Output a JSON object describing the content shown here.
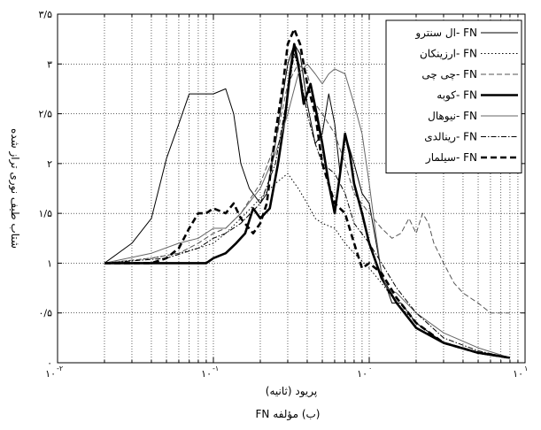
{
  "chart_data": {
    "type": "line",
    "title": "",
    "caption": "(ب) مؤلفه FN",
    "xlabel": "پریود (ثانیه)",
    "ylabel": "شتاب طیف نوری تراز شده",
    "xscale": "log",
    "xlim": [
      0.01,
      10
    ],
    "ylim": [
      0,
      3.5
    ],
    "grid": true,
    "legend_position": "top-right",
    "x_ticks": [
      {
        "value": 0.01,
        "label": "۱۰",
        "exp": "-۲"
      },
      {
        "value": 0.1,
        "label": "۱۰",
        "exp": "-۱"
      },
      {
        "value": 1,
        "label": "۱۰",
        "exp": "۰"
      },
      {
        "value": 10,
        "label": "۱۰",
        "exp": "۱"
      }
    ],
    "y_ticks": [
      {
        "value": 0,
        "label": "۰"
      },
      {
        "value": 0.5,
        "label": "۰/۵"
      },
      {
        "value": 1,
        "label": "۱"
      },
      {
        "value": 1.5,
        "label": "۱/۵"
      },
      {
        "value": 2,
        "label": "۲"
      },
      {
        "value": 2.5,
        "label": "۲/۵"
      },
      {
        "value": 3,
        "label": "۳"
      },
      {
        "value": 3.5,
        "label": "۳/۵"
      }
    ],
    "series": [
      {
        "name": "ال سنترو- FN",
        "color": "#000000",
        "width": 1,
        "dash": "",
        "points": [
          [
            0.02,
            1
          ],
          [
            0.03,
            1.2
          ],
          [
            0.04,
            1.45
          ],
          [
            0.05,
            2.05
          ],
          [
            0.06,
            2.4
          ],
          [
            0.07,
            2.7
          ],
          [
            0.08,
            2.7
          ],
          [
            0.1,
            2.7
          ],
          [
            0.12,
            2.75
          ],
          [
            0.135,
            2.5
          ],
          [
            0.15,
            2.0
          ],
          [
            0.17,
            1.75
          ],
          [
            0.2,
            1.6
          ],
          [
            0.22,
            1.7
          ],
          [
            0.25,
            2.2
          ],
          [
            0.28,
            2.7
          ],
          [
            0.3,
            3.0
          ],
          [
            0.33,
            3.2
          ],
          [
            0.36,
            3.1
          ],
          [
            0.4,
            2.6
          ],
          [
            0.45,
            2.2
          ],
          [
            0.5,
            2.3
          ],
          [
            0.55,
            2.7
          ],
          [
            0.6,
            2.4
          ],
          [
            0.65,
            1.9
          ],
          [
            0.7,
            2.3
          ],
          [
            0.8,
            2.0
          ],
          [
            0.9,
            1.7
          ],
          [
            1.0,
            1.6
          ],
          [
            1.2,
            0.9
          ],
          [
            1.4,
            0.6
          ],
          [
            1.6,
            0.6
          ],
          [
            2.0,
            0.4
          ],
          [
            3.0,
            0.2
          ],
          [
            5.0,
            0.1
          ],
          [
            8.0,
            0.05
          ]
        ]
      },
      {
        "name": "ارزینکان- FN",
        "color": "#000000",
        "width": 1,
        "dash": "1.5,2.5",
        "points": [
          [
            0.02,
            1
          ],
          [
            0.04,
            1.05
          ],
          [
            0.06,
            1.1
          ],
          [
            0.08,
            1.15
          ],
          [
            0.1,
            1.2
          ],
          [
            0.12,
            1.3
          ],
          [
            0.15,
            1.45
          ],
          [
            0.2,
            1.65
          ],
          [
            0.25,
            1.8
          ],
          [
            0.3,
            1.9
          ],
          [
            0.35,
            1.75
          ],
          [
            0.4,
            1.6
          ],
          [
            0.45,
            1.45
          ],
          [
            0.5,
            1.4
          ],
          [
            0.6,
            1.35
          ],
          [
            0.7,
            1.2
          ],
          [
            0.8,
            1.1
          ],
          [
            1.0,
            0.95
          ],
          [
            1.2,
            0.8
          ],
          [
            1.5,
            0.6
          ],
          [
            2.0,
            0.4
          ],
          [
            3.0,
            0.2
          ],
          [
            5.0,
            0.1
          ],
          [
            8.0,
            0.05
          ]
        ]
      },
      {
        "name": "چی چی- FN",
        "color": "#555555",
        "width": 1,
        "dash": "6,3",
        "points": [
          [
            0.02,
            1
          ],
          [
            0.04,
            1.05
          ],
          [
            0.06,
            1.1
          ],
          [
            0.08,
            1.2
          ],
          [
            0.1,
            1.3
          ],
          [
            0.12,
            1.35
          ],
          [
            0.15,
            1.5
          ],
          [
            0.2,
            1.8
          ],
          [
            0.25,
            2.2
          ],
          [
            0.3,
            2.8
          ],
          [
            0.35,
            3.0
          ],
          [
            0.4,
            2.9
          ],
          [
            0.45,
            2.6
          ],
          [
            0.5,
            2.5
          ],
          [
            0.6,
            2.3
          ],
          [
            0.7,
            2.0
          ],
          [
            0.8,
            1.7
          ],
          [
            1.0,
            1.5
          ],
          [
            1.2,
            1.35
          ],
          [
            1.4,
            1.25
          ],
          [
            1.6,
            1.3
          ],
          [
            1.8,
            1.45
          ],
          [
            2.0,
            1.3
          ],
          [
            2.2,
            1.5
          ],
          [
            2.4,
            1.4
          ],
          [
            2.6,
            1.2
          ],
          [
            3.0,
            1.0
          ],
          [
            3.5,
            0.8
          ],
          [
            4.0,
            0.7
          ],
          [
            5.0,
            0.6
          ],
          [
            6.0,
            0.5
          ],
          [
            8.0,
            0.5
          ]
        ]
      },
      {
        "name": "کوبه- FN",
        "color": "#000000",
        "width": 2.6,
        "dash": "",
        "points": [
          [
            0.02,
            1
          ],
          [
            0.05,
            1.0
          ],
          [
            0.07,
            1.0
          ],
          [
            0.09,
            1.0
          ],
          [
            0.1,
            1.05
          ],
          [
            0.12,
            1.1
          ],
          [
            0.14,
            1.2
          ],
          [
            0.16,
            1.3
          ],
          [
            0.18,
            1.55
          ],
          [
            0.2,
            1.45
          ],
          [
            0.23,
            1.55
          ],
          [
            0.26,
            2.0
          ],
          [
            0.29,
            2.5
          ],
          [
            0.31,
            2.9
          ],
          [
            0.33,
            3.2
          ],
          [
            0.35,
            3.0
          ],
          [
            0.38,
            2.6
          ],
          [
            0.42,
            2.8
          ],
          [
            0.46,
            2.5
          ],
          [
            0.5,
            2.2
          ],
          [
            0.55,
            1.8
          ],
          [
            0.6,
            1.5
          ],
          [
            0.65,
            1.9
          ],
          [
            0.7,
            2.3
          ],
          [
            0.75,
            2.1
          ],
          [
            0.8,
            1.8
          ],
          [
            0.9,
            1.5
          ],
          [
            1.0,
            1.2
          ],
          [
            1.2,
            0.85
          ],
          [
            1.5,
            0.6
          ],
          [
            2.0,
            0.35
          ],
          [
            3.0,
            0.2
          ],
          [
            5.0,
            0.1
          ],
          [
            8.0,
            0.05
          ]
        ]
      },
      {
        "name": "نیوهال- FN",
        "color": "#666666",
        "width": 1,
        "dash": "",
        "points": [
          [
            0.02,
            1
          ],
          [
            0.04,
            1.1
          ],
          [
            0.06,
            1.2
          ],
          [
            0.08,
            1.25
          ],
          [
            0.1,
            1.35
          ],
          [
            0.12,
            1.35
          ],
          [
            0.15,
            1.5
          ],
          [
            0.2,
            1.75
          ],
          [
            0.25,
            2.1
          ],
          [
            0.3,
            2.5
          ],
          [
            0.35,
            2.9
          ],
          [
            0.4,
            3.0
          ],
          [
            0.45,
            2.9
          ],
          [
            0.5,
            2.8
          ],
          [
            0.55,
            2.9
          ],
          [
            0.6,
            2.95
          ],
          [
            0.7,
            2.9
          ],
          [
            0.8,
            2.6
          ],
          [
            0.9,
            2.3
          ],
          [
            1.0,
            1.8
          ],
          [
            1.1,
            1.3
          ],
          [
            1.2,
            0.9
          ],
          [
            1.3,
            0.75
          ],
          [
            1.5,
            0.7
          ],
          [
            2.0,
            0.5
          ],
          [
            3.0,
            0.3
          ],
          [
            5.0,
            0.15
          ],
          [
            8.0,
            0.05
          ]
        ]
      },
      {
        "name": "رینالدی- FN",
        "color": "#000000",
        "width": 1,
        "dash": "6,2,1.5,2",
        "points": [
          [
            0.02,
            1
          ],
          [
            0.05,
            1.05
          ],
          [
            0.08,
            1.15
          ],
          [
            0.1,
            1.25
          ],
          [
            0.12,
            1.3
          ],
          [
            0.15,
            1.4
          ],
          [
            0.2,
            1.6
          ],
          [
            0.25,
            2.0
          ],
          [
            0.3,
            2.7
          ],
          [
            0.33,
            3.1
          ],
          [
            0.36,
            2.9
          ],
          [
            0.4,
            2.5
          ],
          [
            0.45,
            2.2
          ],
          [
            0.5,
            2.0
          ],
          [
            0.6,
            1.9
          ],
          [
            0.7,
            1.7
          ],
          [
            0.8,
            1.4
          ],
          [
            1.0,
            1.2
          ],
          [
            1.2,
            1.0
          ],
          [
            1.5,
            0.75
          ],
          [
            2.0,
            0.5
          ],
          [
            3.0,
            0.25
          ],
          [
            5.0,
            0.12
          ],
          [
            8.0,
            0.05
          ]
        ]
      },
      {
        "name": "سیلمار- FN",
        "color": "#000000",
        "width": 2.6,
        "dash": "7,4",
        "points": [
          [
            0.02,
            1
          ],
          [
            0.04,
            1.0
          ],
          [
            0.05,
            1.05
          ],
          [
            0.06,
            1.15
          ],
          [
            0.07,
            1.35
          ],
          [
            0.08,
            1.5
          ],
          [
            0.09,
            1.5
          ],
          [
            0.1,
            1.55
          ],
          [
            0.12,
            1.5
          ],
          [
            0.135,
            1.6
          ],
          [
            0.15,
            1.45
          ],
          [
            0.18,
            1.3
          ],
          [
            0.2,
            1.4
          ],
          [
            0.22,
            1.6
          ],
          [
            0.25,
            2.3
          ],
          [
            0.28,
            2.8
          ],
          [
            0.3,
            3.2
          ],
          [
            0.33,
            3.35
          ],
          [
            0.36,
            3.2
          ],
          [
            0.4,
            2.8
          ],
          [
            0.45,
            2.5
          ],
          [
            0.5,
            2.0
          ],
          [
            0.6,
            1.6
          ],
          [
            0.7,
            1.5
          ],
          [
            0.8,
            1.2
          ],
          [
            0.9,
            0.95
          ],
          [
            1.0,
            1.0
          ],
          [
            1.2,
            0.9
          ],
          [
            1.5,
            0.65
          ],
          [
            2.0,
            0.4
          ],
          [
            3.0,
            0.2
          ],
          [
            5.0,
            0.1
          ],
          [
            8.0,
            0.05
          ]
        ]
      }
    ]
  }
}
